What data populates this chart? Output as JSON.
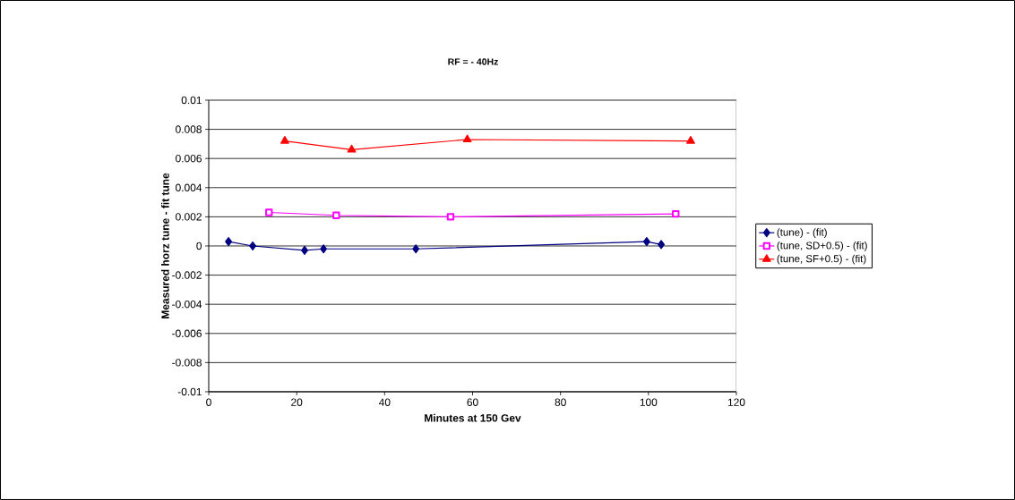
{
  "chart_data": {
    "type": "line",
    "title": "RF = - 40Hz",
    "xlabel": "Minutes at 150 Gev",
    "ylabel": "Measured horz tune - fit tune",
    "xlim": [
      0,
      120
    ],
    "xticks": [
      0,
      20,
      40,
      60,
      80,
      100,
      120
    ],
    "ylim": [
      -0.01,
      0.01
    ],
    "yticks": [
      -0.01,
      -0.008,
      -0.006,
      -0.004,
      -0.002,
      0,
      0.002,
      0.004,
      0.006,
      0.008,
      0.01
    ],
    "grid": "y",
    "legend": "right",
    "line_style": "solid",
    "series": [
      {
        "name": "(tune) - (fit)",
        "color": "#000080",
        "marker": "diamond",
        "x": [
          4.5,
          10,
          21.8,
          26.1,
          47.1,
          99.6,
          102.9
        ],
        "values": [
          0.0003,
          0.0,
          -0.0003,
          -0.0002,
          -0.0002,
          0.0003,
          0.0001
        ]
      },
      {
        "name": "(tune, SD+0.5) - (fit)",
        "color": "#ff00ff",
        "marker": "square",
        "x": [
          13.7,
          29.0,
          55.0,
          106.2
        ],
        "values": [
          0.0023,
          0.0021,
          0.002,
          0.0022
        ]
      },
      {
        "name": "(tune, SF+0.5) - (fit)",
        "color": "#ff0000",
        "marker": "triangle",
        "x": [
          17.3,
          32.5,
          58.8,
          109.6
        ],
        "values": [
          0.0072,
          0.0066,
          0.0073,
          0.0072
        ]
      }
    ]
  }
}
